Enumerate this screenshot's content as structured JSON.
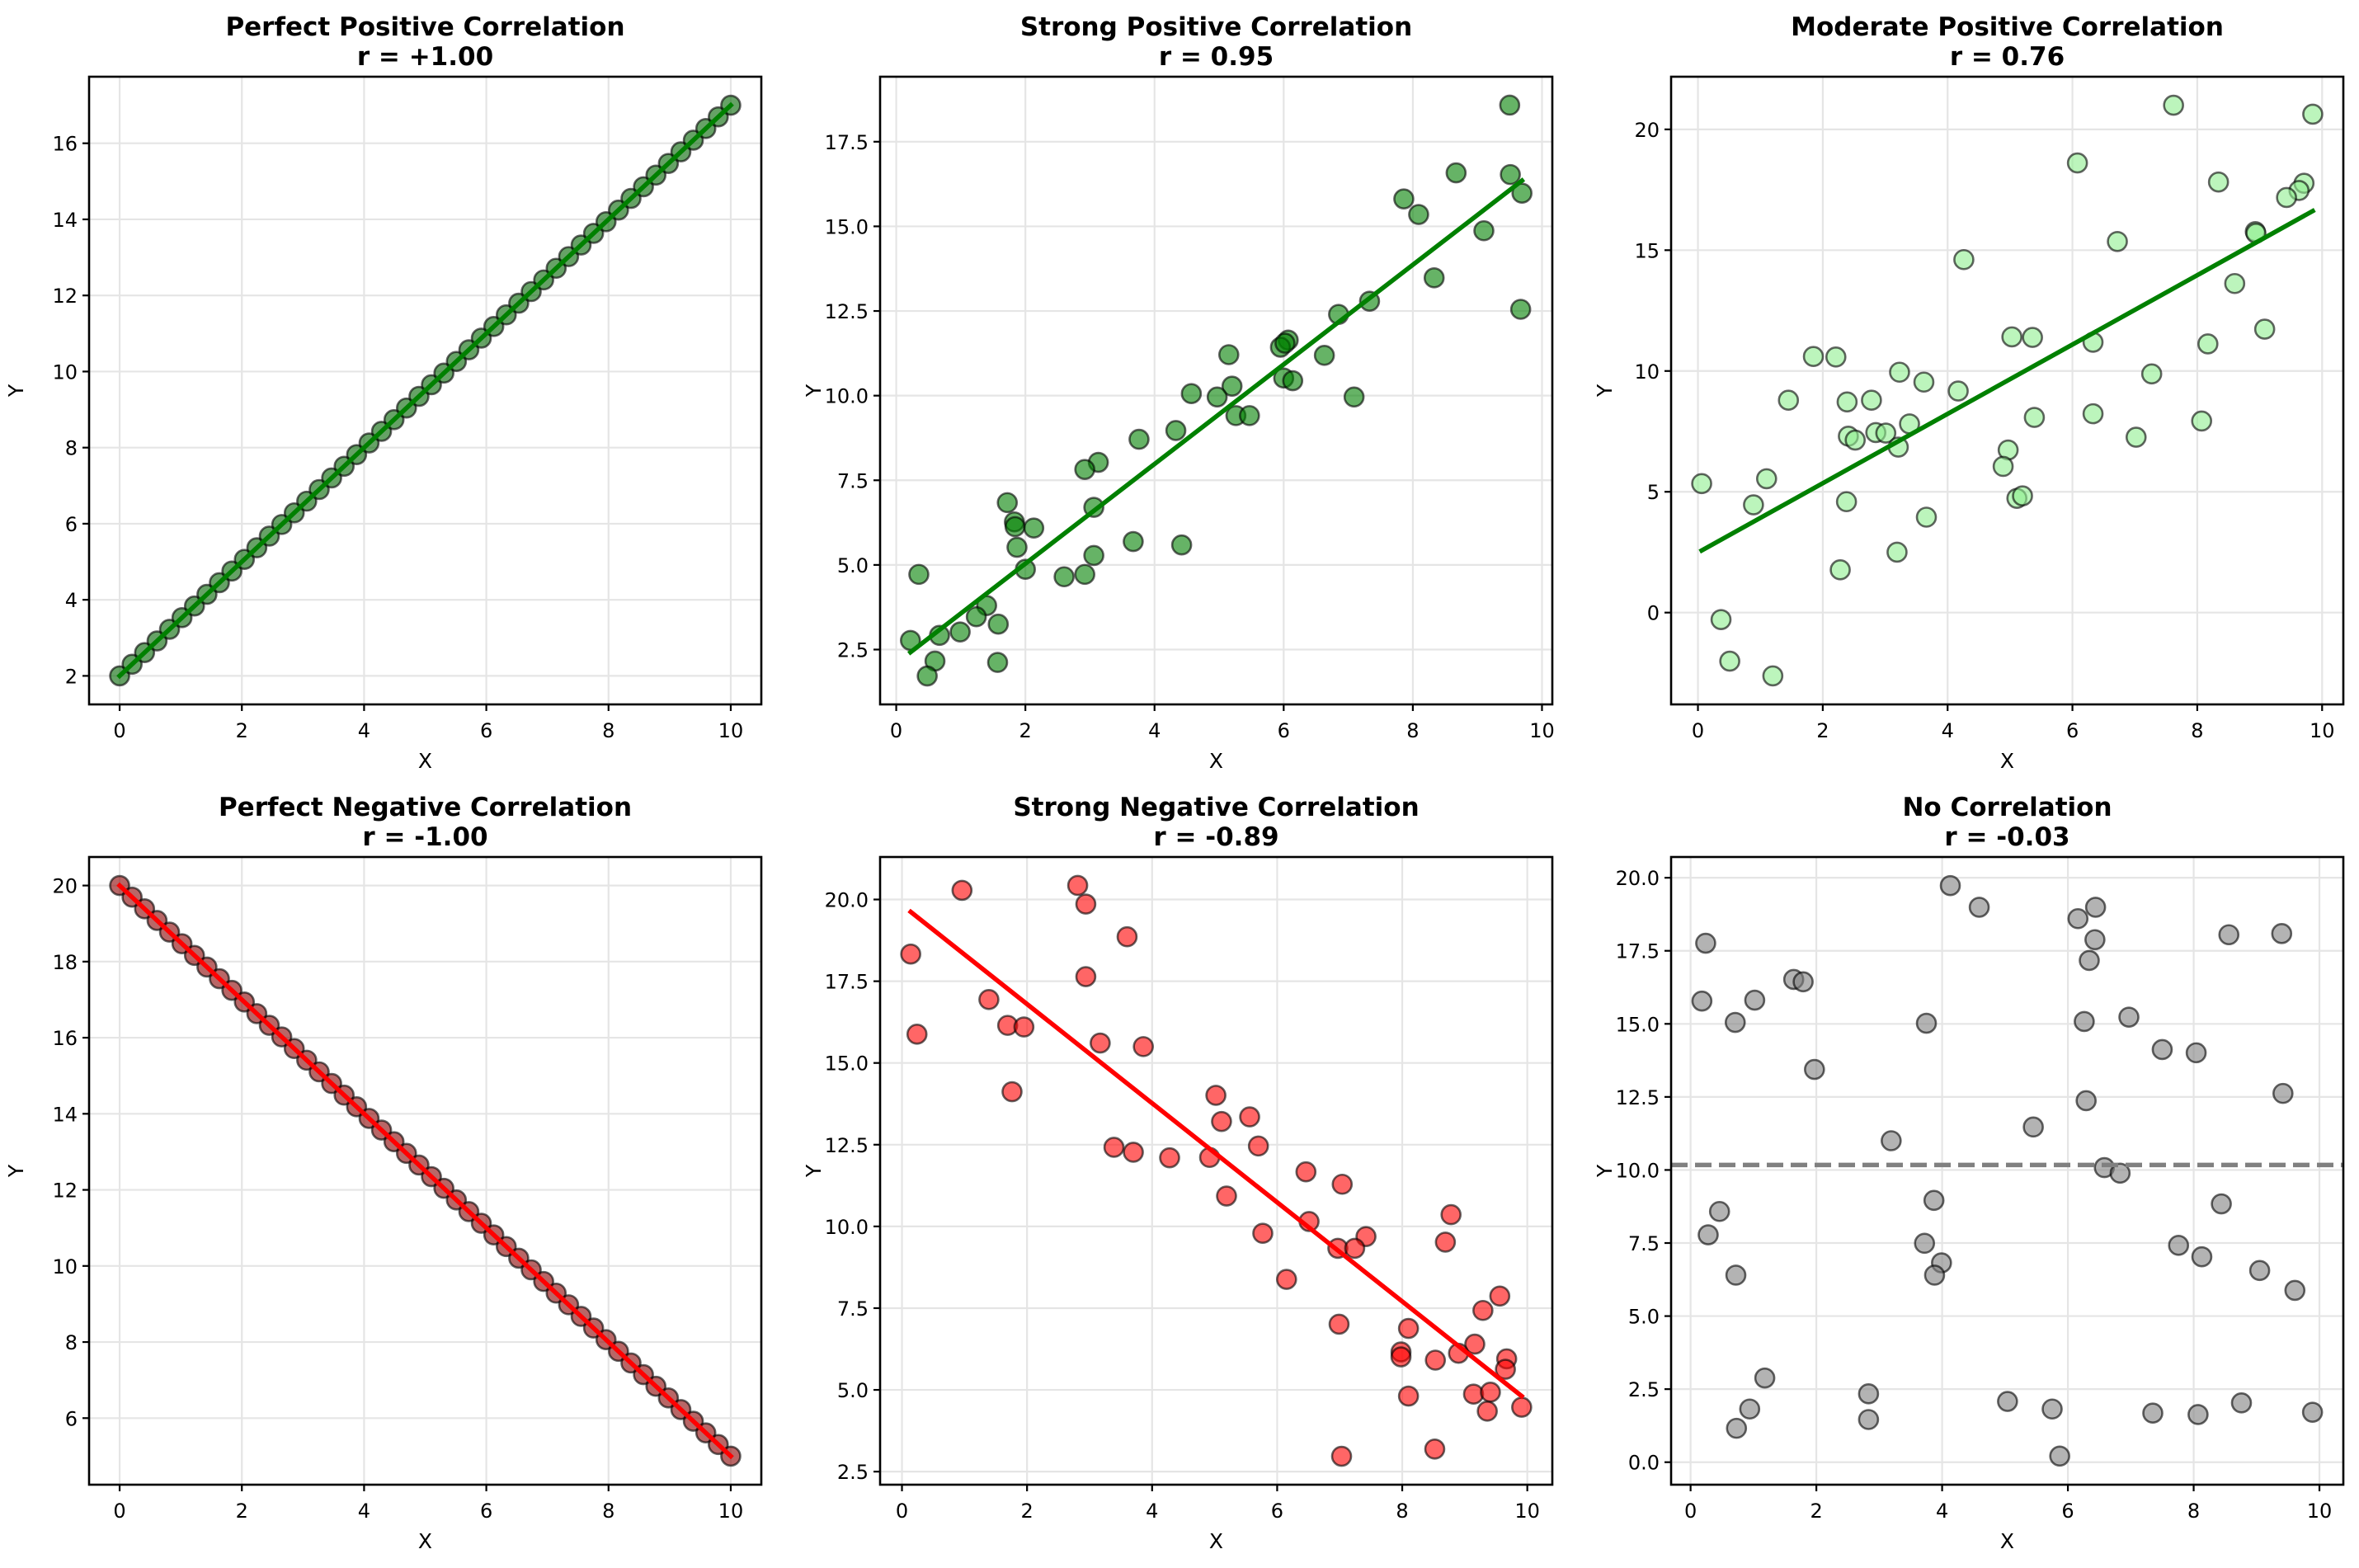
{
  "chart_data": [
    {
      "type": "scatter",
      "title": "Perfect Positive Correlation",
      "subtitle": "r = +1.00",
      "xlabel": "X",
      "ylabel": "Y",
      "xlim": [
        -0.5,
        10.5
      ],
      "ylim": [
        1.25,
        17.75
      ],
      "xticks": [
        0,
        2,
        4,
        6,
        8,
        10
      ],
      "xtick_labels": [
        "0",
        "2",
        "4",
        "6",
        "8",
        "10"
      ],
      "yticks": [
        2,
        4,
        6,
        8,
        10,
        12,
        14,
        16
      ],
      "ytick_labels": [
        "2",
        "4",
        "6",
        "8",
        "10",
        "12",
        "14",
        "16"
      ],
      "grid": true,
      "marker_color": "#006400",
      "marker_alpha": 0.6,
      "edge_color": "#000000",
      "points": {
        "generator": "linear",
        "n": 50,
        "x_start": 0,
        "x_end": 10,
        "slope": 1.5,
        "intercept": 2
      },
      "line": {
        "type": "fit",
        "color": "#008000",
        "x": [
          0,
          10
        ],
        "y": [
          2,
          17
        ]
      }
    },
    {
      "type": "scatter",
      "title": "Strong Positive Correlation",
      "subtitle": "r = 0.95",
      "xlabel": "X",
      "ylabel": "Y",
      "xlim": [
        -0.25,
        10.16
      ],
      "ylim": [
        0.88,
        19.42
      ],
      "xticks": [
        0,
        2,
        4,
        6,
        8,
        10
      ],
      "xtick_labels": [
        "0",
        "2",
        "4",
        "6",
        "8",
        "10"
      ],
      "yticks": [
        2.5,
        5.0,
        7.5,
        10.0,
        12.5,
        15.0,
        17.5
      ],
      "ytick_labels": [
        "2.5",
        "5.0",
        "7.5",
        "10.0",
        "12.5",
        "15.0",
        "17.5"
      ],
      "grid": true,
      "marker_color": "#008000",
      "marker_alpha": 0.6,
      "edge_color": "#000000",
      "x": [
        9.5,
        8.67,
        9.51,
        9.69,
        7.86,
        8.09,
        9.1,
        8.33,
        7.33,
        9.67,
        6.85,
        6.07,
        5.95,
        5.15,
        6.63,
        5.2,
        6.0,
        6.14,
        4.57,
        4.97,
        7.09,
        5.26,
        5.47,
        4.33,
        3.76,
        3.13,
        2.92,
        1.72,
        1.83,
        1.84,
        2.13,
        3.06,
        1.87,
        3.67,
        4.42,
        3.06,
        0.35,
        2.0,
        2.6,
        2.92,
        1.4,
        1.24,
        1.58,
        0.99,
        0.67,
        0.22,
        0.6,
        1.57,
        0.48,
        6.02
      ],
      "y": [
        18.58,
        16.58,
        16.53,
        15.98,
        15.81,
        15.35,
        14.87,
        13.48,
        12.79,
        12.55,
        12.4,
        11.64,
        11.43,
        11.21,
        11.19,
        10.28,
        10.52,
        10.44,
        10.06,
        9.96,
        9.96,
        9.41,
        9.41,
        8.97,
        8.71,
        8.03,
        7.82,
        6.84,
        6.27,
        6.13,
        6.09,
        6.7,
        5.52,
        5.69,
        5.59,
        5.28,
        4.72,
        4.87,
        4.65,
        4.72,
        3.8,
        3.47,
        3.25,
        3.02,
        2.92,
        2.77,
        2.16,
        2.12,
        1.72,
        11.55
      ],
      "line": {
        "type": "fit",
        "color": "#008000",
        "x": [
          0.22,
          9.69
        ],
        "y": [
          2.42,
          16.35
        ]
      }
    },
    {
      "type": "scatter",
      "title": "Moderate Positive Correlation",
      "subtitle": "r = 0.76",
      "xlabel": "X",
      "ylabel": "Y",
      "xlim": [
        -0.43,
        10.34
      ],
      "ylim": [
        -3.8,
        22.18
      ],
      "xticks": [
        0,
        2,
        4,
        6,
        8,
        10
      ],
      "xtick_labels": [
        "0",
        "2",
        "4",
        "6",
        "8",
        "10"
      ],
      "yticks": [
        0,
        5,
        10,
        15,
        20
      ],
      "ytick_labels": [
        "0",
        "5",
        "10",
        "15",
        "20"
      ],
      "grid": true,
      "marker_color": "#90ee90",
      "marker_alpha": 0.6,
      "edge_color": "#000000",
      "x": [
        7.62,
        9.85,
        6.08,
        8.34,
        9.71,
        9.63,
        9.43,
        8.93,
        8.94,
        6.72,
        4.26,
        8.6,
        9.08,
        5.03,
        5.36,
        6.33,
        8.17,
        1.85,
        2.21,
        3.23,
        7.27,
        3.62,
        4.17,
        1.45,
        2.39,
        2.78,
        6.33,
        5.39,
        8.07,
        3.39,
        2.85,
        3.01,
        2.41,
        2.52,
        7.02,
        3.21,
        4.97,
        4.89,
        0.06,
        1.1,
        0.89,
        2.38,
        5.11,
        5.2,
        3.66,
        3.19,
        2.28,
        0.37,
        0.51,
        1.2
      ],
      "y": [
        21.0,
        20.63,
        18.61,
        17.82,
        17.77,
        17.47,
        17.18,
        15.77,
        15.7,
        15.36,
        14.61,
        13.62,
        11.73,
        11.41,
        11.39,
        11.19,
        11.12,
        10.6,
        10.58,
        9.95,
        9.88,
        9.54,
        9.17,
        8.79,
        8.72,
        8.79,
        8.23,
        8.08,
        7.93,
        7.81,
        7.45,
        7.43,
        7.3,
        7.14,
        7.26,
        6.85,
        6.73,
        6.05,
        5.34,
        5.54,
        4.46,
        4.59,
        4.73,
        4.83,
        3.95,
        2.5,
        1.77,
        -0.29,
        -2.01,
        -2.62
      ],
      "line": {
        "type": "fit",
        "color": "#008000",
        "x": [
          0.06,
          9.85
        ],
        "y": [
          2.57,
          16.62
        ]
      }
    },
    {
      "type": "scatter",
      "title": "Perfect Negative Correlation",
      "subtitle": "r = -1.00",
      "xlabel": "X",
      "ylabel": "Y",
      "xlim": [
        -0.5,
        10.5
      ],
      "ylim": [
        4.25,
        20.75
      ],
      "xticks": [
        0,
        2,
        4,
        6,
        8,
        10
      ],
      "xtick_labels": [
        "0",
        "2",
        "4",
        "6",
        "8",
        "10"
      ],
      "yticks": [
        6,
        8,
        10,
        12,
        14,
        16,
        18,
        20
      ],
      "ytick_labels": [
        "6",
        "8",
        "10",
        "12",
        "14",
        "16",
        "18",
        "20"
      ],
      "grid": true,
      "marker_color": "#8b0000",
      "marker_alpha": 0.6,
      "edge_color": "#000000",
      "points": {
        "generator": "linear",
        "n": 50,
        "x_start": 0,
        "x_end": 10,
        "slope": -1.5,
        "intercept": 20
      },
      "line": {
        "type": "fit",
        "color": "#ff0000",
        "x": [
          0,
          10
        ],
        "y": [
          20,
          5
        ]
      }
    },
    {
      "type": "scatter",
      "title": "Strong Negative Correlation",
      "subtitle": "r = -0.89",
      "xlabel": "X",
      "ylabel": "Y",
      "xlim": [
        -0.35,
        10.4
      ],
      "ylim": [
        2.1,
        21.3
      ],
      "xticks": [
        0,
        2,
        4,
        6,
        8,
        10
      ],
      "xtick_labels": [
        "0",
        "2",
        "4",
        "6",
        "8",
        "10"
      ],
      "yticks": [
        2.5,
        5.0,
        7.5,
        10.0,
        12.5,
        15.0,
        17.5,
        20.0
      ],
      "ytick_labels": [
        "2.5",
        "5.0",
        "7.5",
        "10.0",
        "12.5",
        "15.0",
        "17.5",
        "20.0"
      ],
      "grid": true,
      "marker_color": "#ff0000",
      "marker_alpha": 0.6,
      "edge_color": "#000000",
      "x": [
        2.81,
        0.96,
        2.94,
        3.6,
        0.14,
        2.94,
        1.39,
        1.69,
        1.95,
        0.24,
        3.17,
        3.86,
        1.76,
        5.02,
        5.56,
        5.11,
        3.39,
        5.7,
        3.7,
        4.28,
        4.92,
        6.46,
        7.04,
        5.19,
        6.51,
        5.77,
        8.78,
        7.42,
        6.97,
        7.24,
        8.69,
        6.15,
        9.56,
        9.29,
        6.99,
        8.1,
        9.16,
        7.98,
        7.98,
        8.9,
        9.67,
        9.65,
        8.53,
        8.1,
        9.14,
        9.41,
        9.91,
        9.36,
        8.52,
        7.03
      ],
      "y": [
        20.43,
        20.28,
        19.86,
        18.86,
        18.33,
        17.64,
        16.94,
        16.15,
        16.1,
        15.88,
        15.61,
        15.5,
        14.12,
        14.01,
        13.35,
        13.21,
        12.42,
        12.46,
        12.27,
        12.1,
        12.11,
        11.67,
        11.29,
        10.93,
        10.15,
        9.79,
        10.36,
        9.69,
        9.33,
        9.33,
        9.52,
        8.38,
        7.87,
        7.43,
        7.01,
        6.88,
        6.4,
        6.16,
        6.01,
        6.12,
        5.95,
        5.63,
        5.91,
        4.81,
        4.87,
        4.93,
        4.47,
        4.35,
        3.19,
        2.97
      ],
      "line": {
        "type": "fit",
        "color": "#ff0000",
        "x": [
          0.14,
          9.91
        ],
        "y": [
          19.62,
          4.81
        ]
      }
    },
    {
      "type": "scatter",
      "title": "No Correlation",
      "subtitle": "r = -0.03",
      "xlabel": "X",
      "ylabel": "Y",
      "xlim": [
        -0.31,
        10.38
      ],
      "ylim": [
        -0.77,
        20.71
      ],
      "xticks": [
        0,
        2,
        4,
        6,
        8,
        10
      ],
      "xtick_labels": [
        "0",
        "2",
        "4",
        "6",
        "8",
        "10"
      ],
      "yticks": [
        0.0,
        2.5,
        5.0,
        7.5,
        10.0,
        12.5,
        15.0,
        17.5,
        20.0
      ],
      "ytick_labels": [
        "0.0",
        "2.5",
        "5.0",
        "7.5",
        "10.0",
        "12.5",
        "15.0",
        "17.5",
        "20.0"
      ],
      "grid": true,
      "marker_color": "#808080",
      "marker_alpha": 0.6,
      "edge_color": "#000000",
      "x": [
        4.13,
        4.59,
        6.16,
        6.44,
        0.24,
        8.56,
        9.4,
        6.43,
        6.34,
        1.64,
        1.79,
        0.18,
        1.02,
        0.71,
        3.75,
        6.26,
        6.97,
        7.5,
        8.04,
        1.97,
        9.42,
        6.29,
        5.45,
        3.19,
        6.58,
        6.83,
        3.87,
        0.46,
        8.44,
        0.28,
        3.72,
        7.76,
        8.13,
        3.99,
        3.88,
        0.72,
        9.05,
        9.61,
        1.18,
        2.83,
        0.94,
        0.73,
        2.83,
        5.04,
        5.75,
        7.35,
        8.07,
        8.76,
        9.89,
        5.87
      ],
      "y": [
        19.73,
        18.99,
        18.6,
        18.99,
        17.76,
        18.05,
        18.09,
        17.88,
        17.17,
        16.52,
        16.44,
        15.78,
        15.81,
        15.05,
        15.02,
        15.08,
        15.23,
        14.12,
        14.01,
        13.44,
        12.62,
        12.37,
        11.47,
        11.0,
        10.08,
        9.89,
        8.96,
        8.58,
        8.84,
        7.78,
        7.49,
        7.42,
        7.03,
        6.82,
        6.4,
        6.4,
        6.56,
        5.88,
        2.88,
        2.34,
        1.82,
        1.16,
        1.46,
        2.08,
        1.82,
        1.68,
        1.63,
        2.03,
        1.71,
        0.21
      ],
      "line": {
        "type": "mean",
        "color": "#808080",
        "dashed": true,
        "y": 10.17
      }
    }
  ]
}
